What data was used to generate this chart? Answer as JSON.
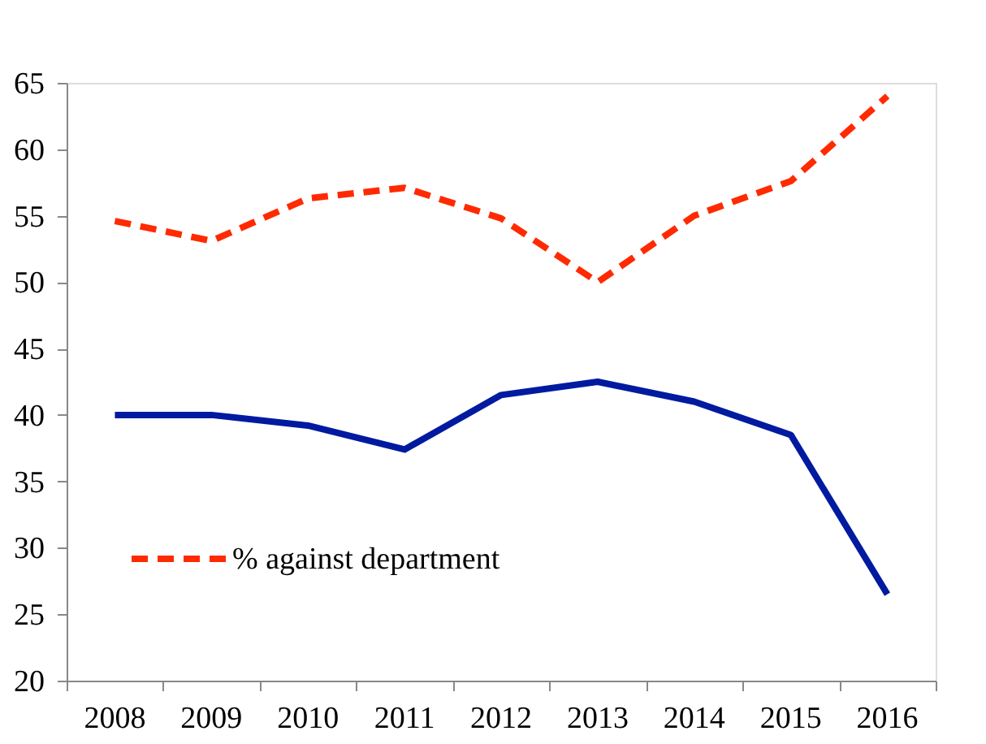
{
  "chart_data": {
    "type": "line",
    "categories": [
      "2008",
      "2009",
      "2010",
      "2011",
      "2012",
      "2013",
      "2014",
      "2015",
      "2016"
    ],
    "series": [
      {
        "name": "% against department",
        "color": "#ff2a00",
        "line_style": "dashed",
        "values": [
          54.6,
          53.1,
          56.3,
          57.1,
          54.8,
          50.0,
          55.0,
          57.6,
          64.0
        ]
      },
      {
        "color": "#001aa0",
        "line_style": "solid",
        "values": [
          40.0,
          40.0,
          39.2,
          37.4,
          41.5,
          42.5,
          41.0,
          38.5,
          26.5
        ]
      }
    ],
    "ylim": [
      20,
      65
    ],
    "yticks": [
      20,
      25,
      30,
      35,
      40,
      45,
      50,
      55,
      60,
      65
    ],
    "grid": false,
    "legend": "bottom left",
    "marker": "none"
  }
}
